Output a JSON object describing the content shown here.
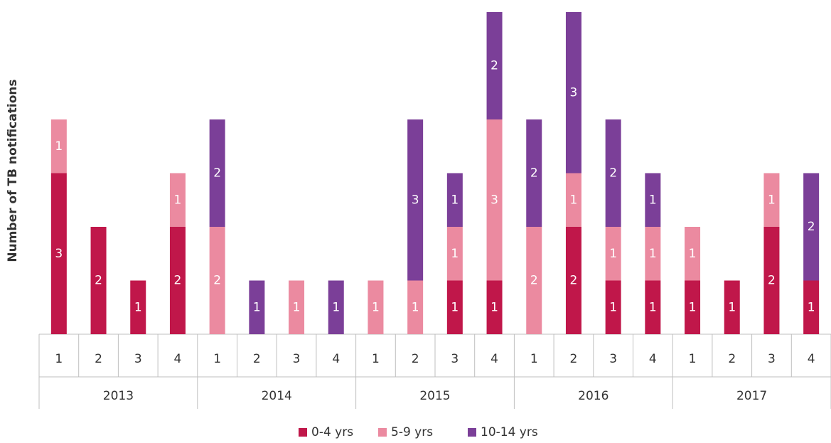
{
  "chart_data": {
    "type": "stacked-bar",
    "y_label": "Number of TB notifications",
    "categories": [
      "1",
      "2",
      "3",
      "4",
      "1",
      "2",
      "3",
      "4",
      "1",
      "2",
      "3",
      "4",
      "1",
      "2",
      "3",
      "4",
      "1",
      "2",
      "3",
      "4"
    ],
    "years": [
      "2013",
      "2014",
      "2015",
      "2016",
      "2017"
    ],
    "series": [
      {
        "name": "0-4 yrs",
        "color": "#c0174a",
        "values": [
          3,
          2,
          1,
          2,
          0,
          0,
          0,
          0,
          0,
          0,
          1,
          1,
          0,
          2,
          1,
          1,
          1,
          1,
          2,
          1
        ]
      },
      {
        "name": "5-9 yrs",
        "color": "#eb8aa0",
        "values": [
          1,
          0,
          0,
          1,
          2,
          0,
          1,
          0,
          1,
          1,
          1,
          3,
          2,
          1,
          1,
          1,
          1,
          0,
          1,
          0
        ]
      },
      {
        "name": "10-14 yrs",
        "color": "#7b3f98",
        "values": [
          0,
          0,
          0,
          0,
          2,
          1,
          0,
          1,
          0,
          3,
          1,
          2,
          2,
          3,
          2,
          1,
          0,
          0,
          0,
          2
        ]
      }
    ],
    "ylim": [
      0,
      6
    ],
    "legend": "bottom"
  }
}
